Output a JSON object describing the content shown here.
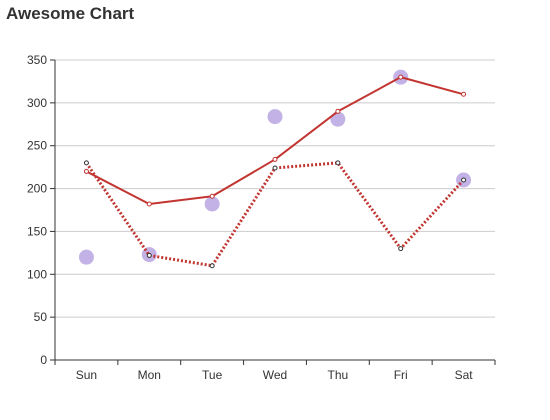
{
  "chart_data": {
    "type": "line",
    "title": "Awesome Chart",
    "categories": [
      "Sun",
      "Mon",
      "Tue",
      "Wed",
      "Thu",
      "Fri",
      "Sat"
    ],
    "ylim": [
      0,
      350
    ],
    "yticks": [
      0,
      50,
      100,
      150,
      200,
      250,
      300,
      350
    ],
    "grid": true,
    "series": [
      {
        "type": "line",
        "style": "solid",
        "color": "#c23531",
        "values": [
          220,
          182,
          191,
          234,
          290,
          330,
          310
        ]
      },
      {
        "type": "line",
        "style": "dotted",
        "color": "#c23531",
        "values": [
          230,
          122,
          110,
          224,
          230,
          130,
          210
        ]
      },
      {
        "type": "scatter",
        "color": "#b7a5e0",
        "values": [
          120,
          123,
          182,
          284,
          281,
          330,
          210
        ]
      }
    ]
  }
}
